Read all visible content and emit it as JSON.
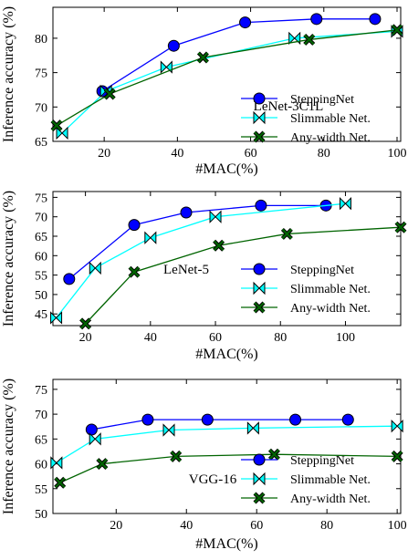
{
  "chart_data": [
    {
      "type": "line",
      "annotation": "LeNet-3C1L",
      "xlabel": "#MAC(%)",
      "ylabel": "Inference accuracy (%)",
      "xlim": [
        6,
        101
      ],
      "ylim": [
        65,
        84.5
      ],
      "xticks": [
        20,
        40,
        60,
        80,
        100
      ],
      "yticks": [
        65,
        70,
        75,
        80
      ],
      "legend_position": "right-center",
      "series": [
        {
          "name": "SteppingNet",
          "marker": "circle",
          "color": "#0000ff",
          "x": [
            19.5,
            39,
            58.5,
            78,
            94
          ],
          "y": [
            72.3,
            78.9,
            82.3,
            82.8,
            82.8
          ]
        },
        {
          "name": "Slimmable Net.",
          "marker": "bowtie",
          "color": "#00ffff",
          "x": [
            8.5,
            20.5,
            37,
            72,
            100
          ],
          "y": [
            66.2,
            72.3,
            75.8,
            80,
            81
          ]
        },
        {
          "name": "Any-width Net.",
          "marker": "x",
          "color": "#006400",
          "x": [
            7,
            21.5,
            47,
            76,
            100
          ],
          "y": [
            67.3,
            71.9,
            77.2,
            79.8,
            81.2
          ]
        }
      ]
    },
    {
      "type": "line",
      "annotation": "LeNet-5",
      "xlabel": "#MAC(%)",
      "ylabel": "Inference accuracy (%)",
      "xlim": [
        10,
        117
      ],
      "ylim": [
        42,
        76.5
      ],
      "xticks": [
        20,
        40,
        60,
        80,
        100
      ],
      "yticks": [
        45,
        50,
        55,
        60,
        65,
        70,
        75
      ],
      "legend_position": "right-center",
      "series": [
        {
          "name": "SteppingNet",
          "marker": "circle",
          "color": "#0000ff",
          "x": [
            15,
            35,
            51,
            74,
            94
          ],
          "y": [
            54,
            67.9,
            71.1,
            72.9,
            72.9
          ]
        },
        {
          "name": "Slimmable Net.",
          "marker": "bowtie",
          "color": "#00ffff",
          "x": [
            11,
            23,
            40,
            60,
            100
          ],
          "y": [
            44,
            56.8,
            64.6,
            70,
            73.4
          ]
        },
        {
          "name": "Any-width Net.",
          "marker": "x",
          "color": "#006400",
          "x": [
            20,
            35,
            61,
            82,
            117
          ],
          "y": [
            42.5,
            55.8,
            62.6,
            65.6,
            67.3
          ]
        }
      ]
    },
    {
      "type": "line",
      "annotation": "VGG-16",
      "xlabel": "#MAC(%)",
      "ylabel": "Inference accuracy (%)",
      "xlim": [
        2,
        101
      ],
      "ylim": [
        50,
        77
      ],
      "xticks": [
        20,
        40,
        60,
        80,
        100
      ],
      "yticks": [
        50,
        55,
        60,
        65,
        70,
        75
      ],
      "legend_position": "right-center",
      "series": [
        {
          "name": "SteppingNet",
          "marker": "circle",
          "color": "#0000ff",
          "x": [
            13,
            29,
            46,
            71,
            86
          ],
          "y": [
            66.9,
            68.9,
            68.9,
            68.9,
            68.9
          ]
        },
        {
          "name": "Slimmable Net.",
          "marker": "bowtie",
          "color": "#00ffff",
          "x": [
            3,
            14,
            35,
            59,
            100
          ],
          "y": [
            60.2,
            65,
            66.8,
            67.2,
            67.6
          ]
        },
        {
          "name": "Any-width Net.",
          "marker": "x",
          "color": "#006400",
          "x": [
            4,
            16,
            37,
            65,
            100
          ],
          "y": [
            56.2,
            60,
            61.5,
            61.9,
            61.5
          ]
        }
      ]
    }
  ]
}
